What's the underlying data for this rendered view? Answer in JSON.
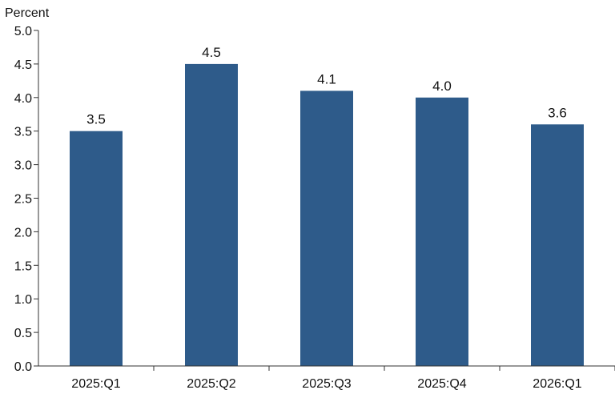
{
  "chart_data": {
    "type": "bar",
    "title": "",
    "xlabel": "",
    "ylabel": "Percent",
    "categories": [
      "2025:Q1",
      "2025:Q2",
      "2025:Q3",
      "2025:Q4",
      "2026:Q1"
    ],
    "values": [
      3.5,
      4.5,
      4.1,
      4.0,
      3.6
    ],
    "data_labels": [
      "3.5",
      "4.5",
      "4.1",
      "4.0",
      "3.6"
    ],
    "yticks": [
      "0.0",
      "0.5",
      "1.0",
      "1.5",
      "2.0",
      "2.5",
      "3.0",
      "3.5",
      "4.0",
      "4.5",
      "5.0"
    ],
    "ylim": [
      0,
      5
    ],
    "grid": false,
    "legend": "none",
    "bar_color": "#2e5b8a",
    "axis_color": "#333333"
  }
}
